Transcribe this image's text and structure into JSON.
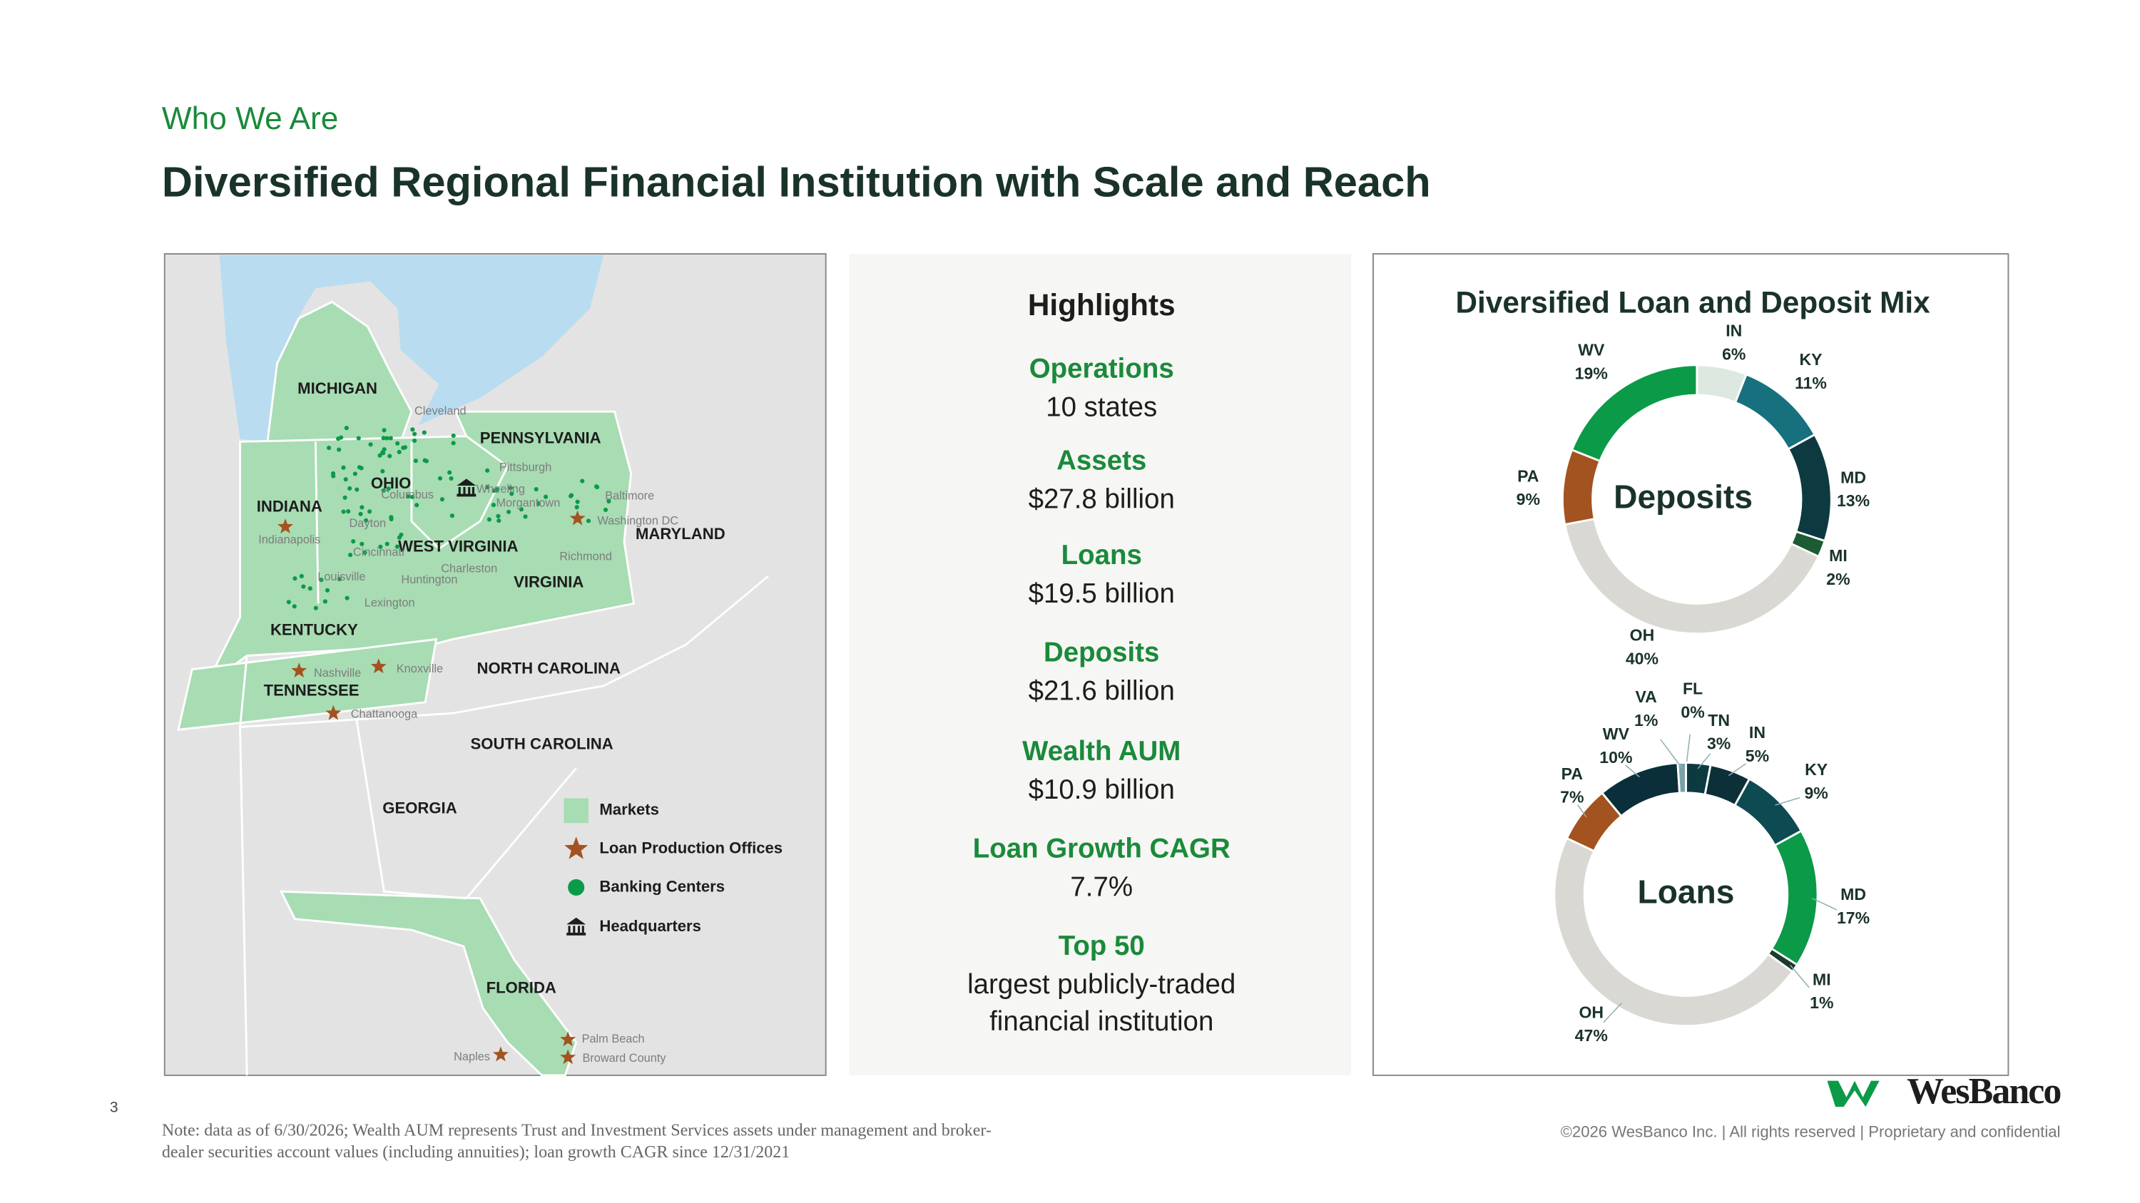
{
  "header": {
    "kicker": "Who We Are",
    "title": "Diversified Regional Financial Institution with Scale and Reach"
  },
  "map": {
    "states": [
      "MICHIGAN",
      "OHIO",
      "INDIANA",
      "PENNSYLVANIA",
      "WEST VIRGINIA",
      "MARYLAND",
      "VIRGINIA",
      "KENTUCKY",
      "NORTH CAROLINA",
      "TENNESSEE",
      "SOUTH CAROLINA",
      "GEORGIA",
      "FLORIDA"
    ],
    "cities": [
      "Cleveland",
      "Pittsburgh",
      "Columbus",
      "Wheeling",
      "Morgantown",
      "Baltimore",
      "Washington DC",
      "Dayton",
      "Indianapolis",
      "Cincinnati",
      "Richmond",
      "Charleston",
      "Huntington",
      "Louisville",
      "Lexington",
      "Nashville",
      "Knoxville",
      "Chattanooga",
      "Palm Beach",
      "Naples",
      "Broward County"
    ],
    "legend": [
      "Markets",
      "Loan Production Offices",
      "Banking Centers",
      "Headquarters"
    ]
  },
  "highlights": {
    "title": "Highlights",
    "items": [
      {
        "label": "Operations",
        "lines": [
          "10 states"
        ]
      },
      {
        "label": "Assets",
        "lines": [
          "$27.8 billion"
        ]
      },
      {
        "label": "Loans",
        "lines": [
          "$19.5 billion"
        ]
      },
      {
        "label": "Deposits",
        "lines": [
          "$21.6 billion"
        ]
      },
      {
        "label": "Wealth AUM",
        "lines": [
          "$10.9 billion"
        ]
      },
      {
        "label": "Loan Growth CAGR",
        "lines": [
          "7.7%"
        ]
      },
      {
        "label": "Top 50",
        "lines": [
          "largest publicly-traded",
          "financial institution"
        ]
      }
    ]
  },
  "mix_title": "Diversified Loan and Deposit Mix",
  "chart_data": [
    {
      "type": "donut",
      "center_label": "Deposits",
      "categories": [
        "IN",
        "KY",
        "MD",
        "MI",
        "OH",
        "PA",
        "WV"
      ],
      "values": [
        6,
        11,
        13,
        2,
        40,
        9,
        19
      ],
      "value_labels": [
        "6%",
        "11%",
        "13%",
        "2%",
        "40%",
        "9%",
        "19%"
      ],
      "colors": [
        "#dde9e0",
        "#17707d",
        "#0c3a40",
        "#1c5b33",
        "#dad8d3",
        "#a3531f",
        "#0b9a48"
      ]
    },
    {
      "type": "donut",
      "center_label": "Loans",
      "categories": [
        "FL",
        "TN",
        "IN",
        "KY",
        "MD",
        "MI",
        "OH",
        "PA",
        "WV",
        "VA"
      ],
      "values": [
        0,
        3,
        5,
        9,
        17,
        1,
        47,
        7,
        10,
        1
      ],
      "value_labels": [
        "0%",
        "3%",
        "5%",
        "9%",
        "17%",
        "1%",
        "47%",
        "7%",
        "10%",
        "1%"
      ],
      "colors": [
        "#dde9e0",
        "#0c3a40",
        "#0d3038",
        "#0e4a52",
        "#0b9a48",
        "#1c3b2e",
        "#dad8d3",
        "#a3531f",
        "#0a2f3a",
        "#7aa1a8"
      ]
    }
  ],
  "footer": {
    "page": "3",
    "note": [
      "Note: data as of 6/30/2026; Wealth AUM represents Trust and Investment Services assets under management and broker-",
      "dealer securities account values (including annuities); loan growth CAGR since 12/31/2021"
    ],
    "copyright": "©2026 WesBanco Inc.  |  All rights reserved  |  Proprietary and confidential",
    "logo": "WesBanco"
  }
}
